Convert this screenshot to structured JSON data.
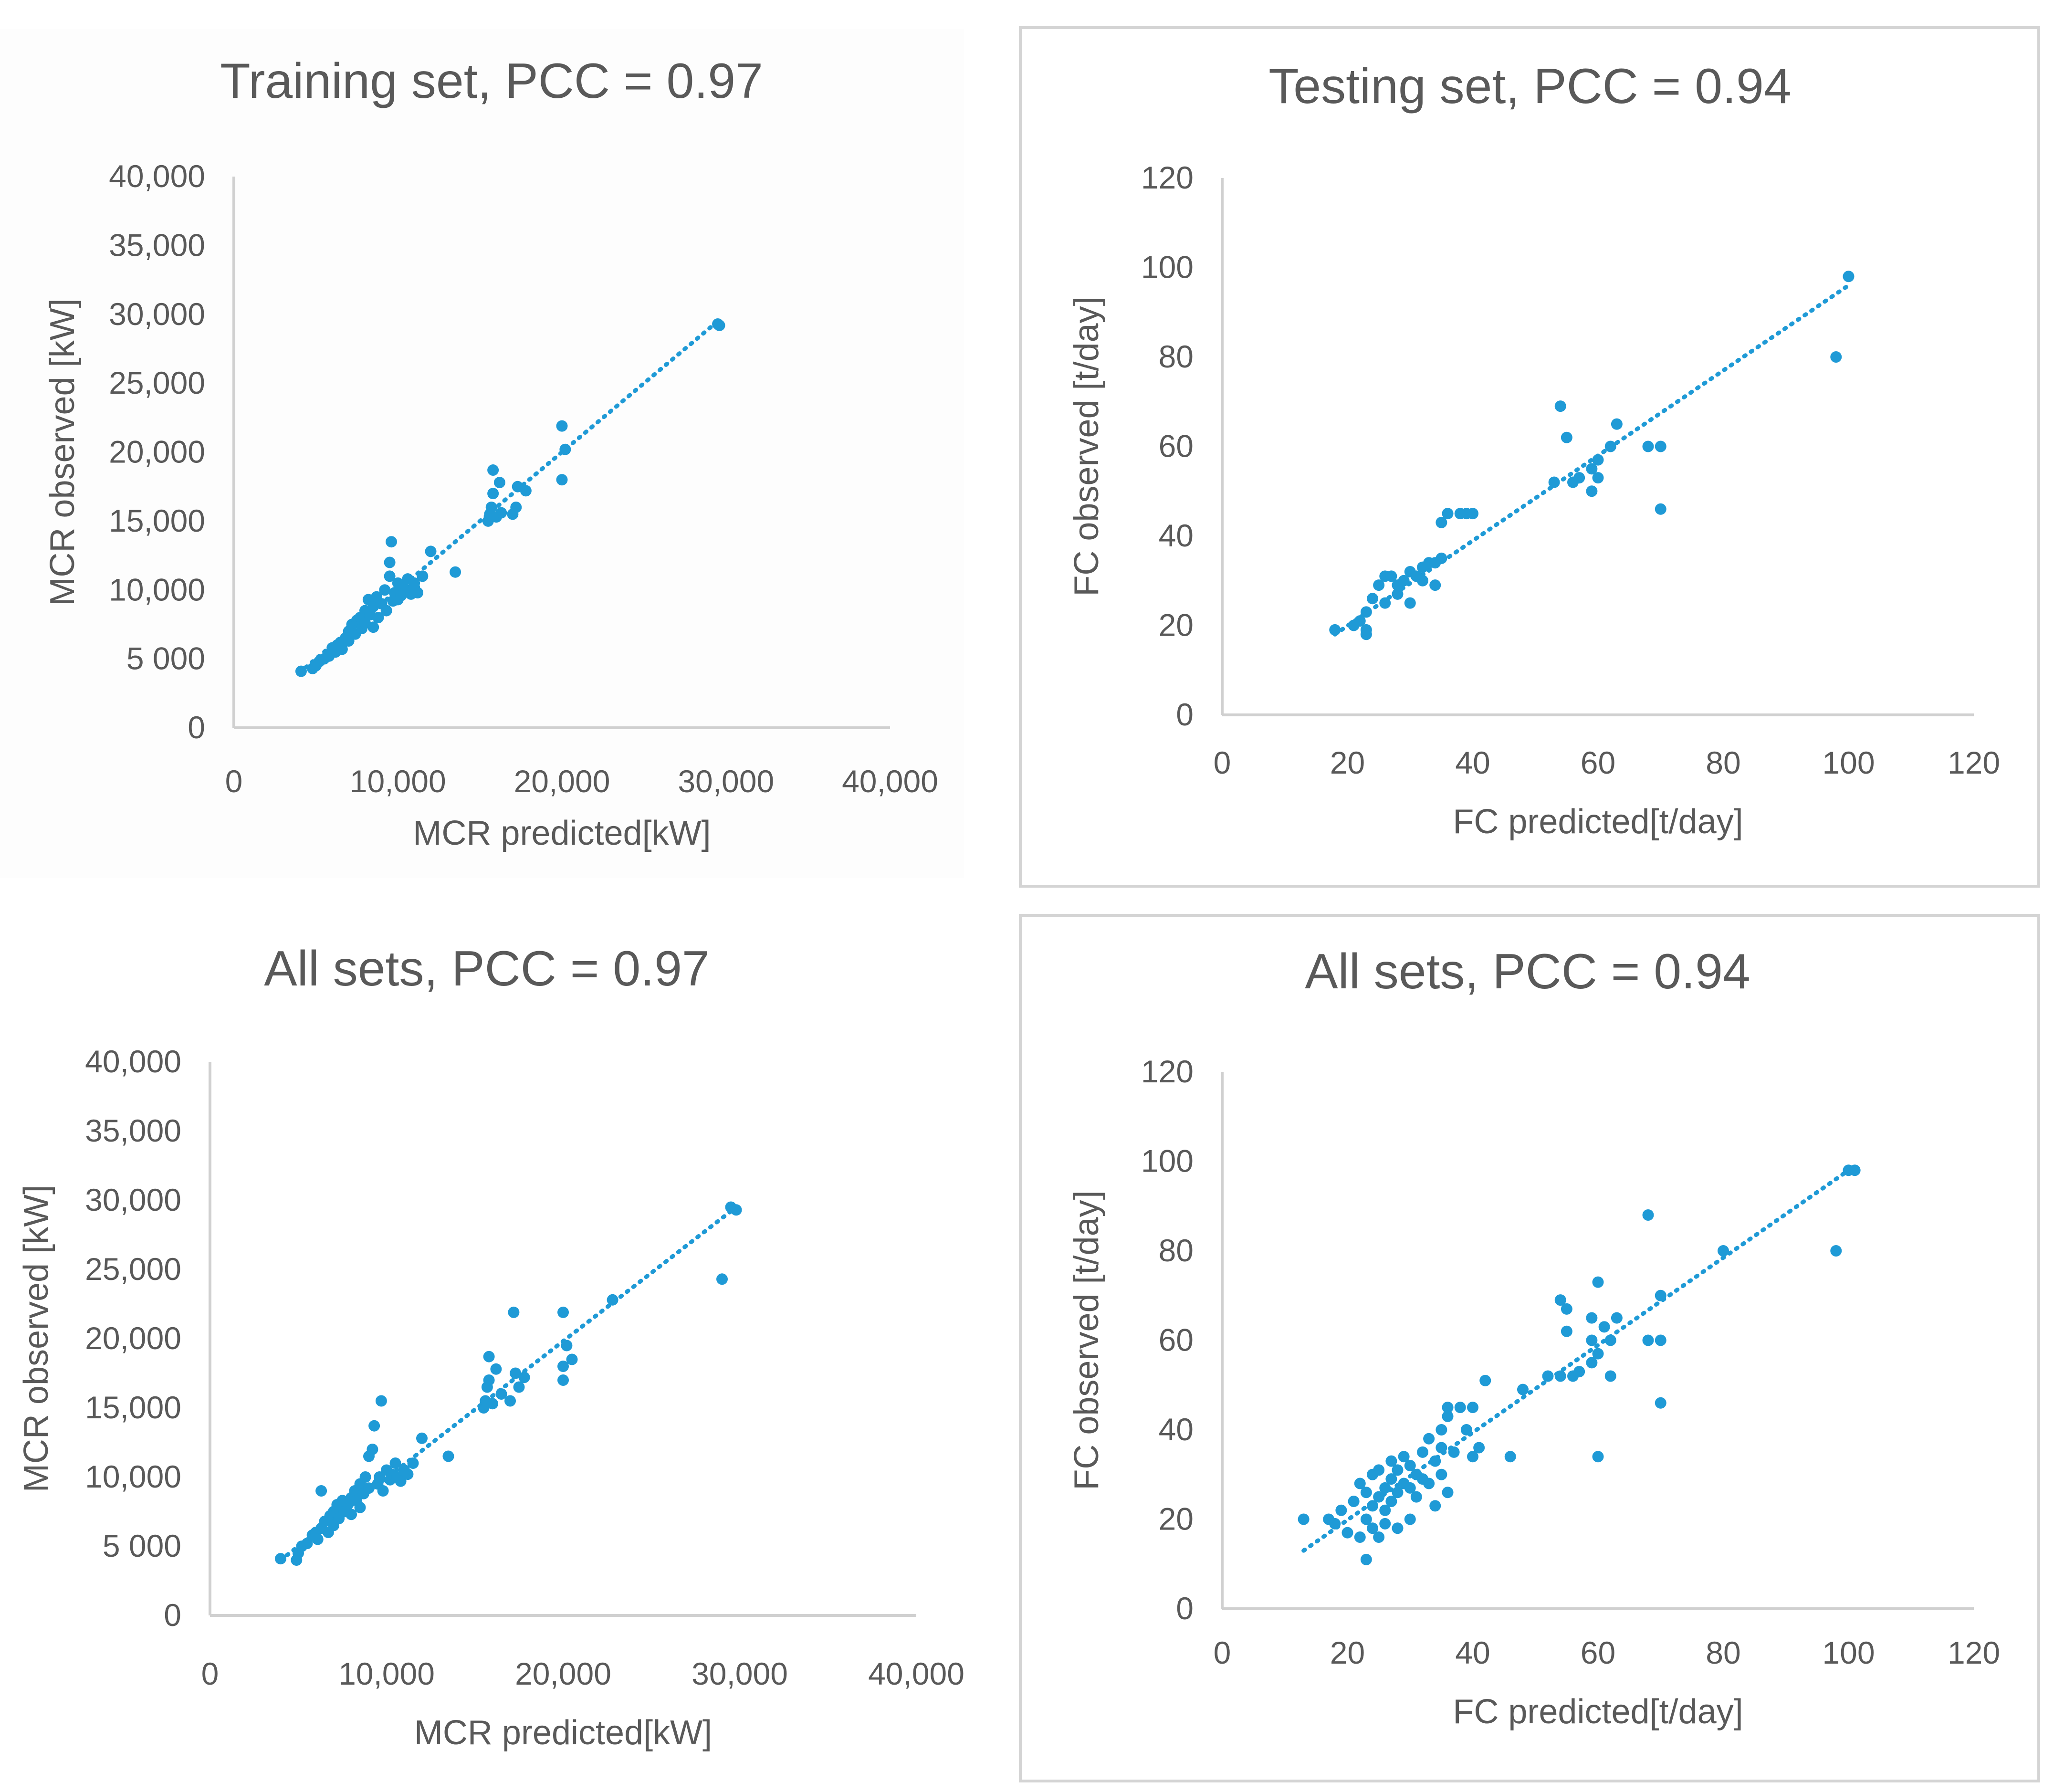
{
  "chart_data": [
    {
      "type": "scatter",
      "title": "Training set, PCC = 0.97",
      "xlabel": "MCR predicted[kW]",
      "ylabel": "MCR observed [kW]",
      "xlim": [
        0,
        40000
      ],
      "ylim": [
        0,
        40000
      ],
      "x_ticks": [
        0,
        10000,
        20000,
        30000,
        40000
      ],
      "x_tick_labels": [
        "0",
        "10,000",
        "20,000",
        "30,000",
        "40,000"
      ],
      "y_ticks": [
        0,
        5000,
        10000,
        15000,
        20000,
        25000,
        30000,
        35000,
        40000
      ],
      "y_tick_labels": [
        "0",
        "5 000",
        "10,000",
        "15,000",
        "20,000",
        "25,000",
        "30,000",
        "35,000",
        "40,000"
      ],
      "trendline": [
        [
          4000,
          4000
        ],
        [
          29500,
          29500
        ]
      ],
      "points": [
        [
          4100,
          4100
        ],
        [
          4800,
          4300
        ],
        [
          5000,
          4500
        ],
        [
          5200,
          4800
        ],
        [
          5500,
          5000
        ],
        [
          5800,
          5200
        ],
        [
          6000,
          5800
        ],
        [
          6200,
          5500
        ],
        [
          6300,
          6000
        ],
        [
          6500,
          6200
        ],
        [
          6600,
          5700
        ],
        [
          6800,
          6500
        ],
        [
          7000,
          7000
        ],
        [
          7000,
          6300
        ],
        [
          7200,
          7500
        ],
        [
          7400,
          6800
        ],
        [
          7500,
          7800
        ],
        [
          7700,
          8000
        ],
        [
          7800,
          7200
        ],
        [
          8000,
          8500
        ],
        [
          8000,
          7600
        ],
        [
          8200,
          9300
        ],
        [
          8300,
          8200
        ],
        [
          8500,
          8800
        ],
        [
          8500,
          7300
        ],
        [
          8700,
          9500
        ],
        [
          8800,
          8000
        ],
        [
          9000,
          9000
        ],
        [
          9200,
          10000
        ],
        [
          9300,
          8500
        ],
        [
          9500,
          11000
        ],
        [
          9500,
          12000
        ],
        [
          9600,
          13500
        ],
        [
          9700,
          9200
        ],
        [
          9800,
          9800
        ],
        [
          10000,
          10500
        ],
        [
          10000,
          9300
        ],
        [
          10200,
          9600
        ],
        [
          10300,
          10300
        ],
        [
          10500,
          10000
        ],
        [
          10600,
          10800
        ],
        [
          10800,
          9700
        ],
        [
          11000,
          10500
        ],
        [
          11000,
          10200
        ],
        [
          11200,
          9800
        ],
        [
          11500,
          11000
        ],
        [
          12000,
          12800
        ],
        [
          13500,
          11300
        ],
        [
          15500,
          15000
        ],
        [
          15600,
          15500
        ],
        [
          15700,
          16000
        ],
        [
          15800,
          17000
        ],
        [
          15800,
          18700
        ],
        [
          16000,
          15300
        ],
        [
          16200,
          17800
        ],
        [
          16300,
          15600
        ],
        [
          17000,
          15500
        ],
        [
          17200,
          16000
        ],
        [
          17300,
          17500
        ],
        [
          17800,
          17200
        ],
        [
          20000,
          18000
        ],
        [
          20000,
          21900
        ],
        [
          20200,
          20200
        ],
        [
          29500,
          29300
        ],
        [
          29600,
          29200
        ]
      ],
      "color": "#1f9ad6"
    },
    {
      "type": "scatter",
      "title": "Testing set, PCC = 0.94",
      "xlabel": "FC predicted[t/day]",
      "ylabel": "FC observed [t/day]",
      "xlim": [
        0,
        120
      ],
      "ylim": [
        0,
        120
      ],
      "x_ticks": [
        0,
        20,
        40,
        60,
        80,
        100,
        120
      ],
      "x_tick_labels": [
        "0",
        "20",
        "40",
        "60",
        "80",
        "100",
        "120"
      ],
      "y_ticks": [
        0,
        20,
        40,
        60,
        80,
        100,
        120
      ],
      "y_tick_labels": [
        "0",
        "20",
        "40",
        "60",
        "80",
        "100",
        "120"
      ],
      "trendline": [
        [
          18,
          18
        ],
        [
          100,
          96
        ]
      ],
      "points": [
        [
          18,
          19
        ],
        [
          21,
          20
        ],
        [
          22,
          21
        ],
        [
          23,
          18
        ],
        [
          23,
          19
        ],
        [
          23,
          23
        ],
        [
          24,
          26
        ],
        [
          25,
          29
        ],
        [
          26,
          25
        ],
        [
          26,
          31
        ],
        [
          27,
          31
        ],
        [
          28,
          29
        ],
        [
          28,
          27
        ],
        [
          29,
          30
        ],
        [
          30,
          25
        ],
        [
          30,
          32
        ],
        [
          31,
          31
        ],
        [
          32,
          33
        ],
        [
          32,
          30
        ],
        [
          33,
          34
        ],
        [
          34,
          34
        ],
        [
          34,
          29
        ],
        [
          35,
          35
        ],
        [
          35,
          43
        ],
        [
          36,
          45
        ],
        [
          38,
          45
        ],
        [
          39,
          45
        ],
        [
          40,
          45
        ],
        [
          53,
          52
        ],
        [
          54,
          69
        ],
        [
          55,
          62
        ],
        [
          56,
          52
        ],
        [
          57,
          53
        ],
        [
          59,
          55
        ],
        [
          59,
          50
        ],
        [
          60,
          57
        ],
        [
          60,
          53
        ],
        [
          62,
          60
        ],
        [
          63,
          65
        ],
        [
          68,
          60
        ],
        [
          70,
          60
        ],
        [
          70,
          46
        ],
        [
          98,
          80
        ],
        [
          100,
          98
        ]
      ],
      "color": "#1f9ad6"
    },
    {
      "type": "scatter",
      "title": "All sets, PCC = 0.97",
      "xlabel": "MCR predicted[kW]",
      "ylabel": "MCR observed [kW]",
      "xlim": [
        0,
        40000
      ],
      "ylim": [
        0,
        40000
      ],
      "x_ticks": [
        0,
        10000,
        20000,
        30000,
        40000
      ],
      "x_tick_labels": [
        "0",
        "10,000",
        "20,000",
        "30,000",
        "40,000"
      ],
      "y_ticks": [
        0,
        5000,
        10000,
        15000,
        20000,
        25000,
        30000,
        35000,
        40000
      ],
      "y_tick_labels": [
        "0",
        "5 000",
        "10,000",
        "15,000",
        "20,000",
        "25,000",
        "30,000",
        "35,000",
        "40,000"
      ],
      "trendline": [
        [
          4000,
          4000
        ],
        [
          29800,
          29500
        ]
      ],
      "points": [
        [
          4000,
          4100
        ],
        [
          4900,
          4000
        ],
        [
          5000,
          4500
        ],
        [
          5200,
          5000
        ],
        [
          5500,
          5200
        ],
        [
          5800,
          5800
        ],
        [
          6000,
          6000
        ],
        [
          6100,
          5500
        ],
        [
          6300,
          6300
        ],
        [
          6300,
          9000
        ],
        [
          6500,
          6800
        ],
        [
          6700,
          6000
        ],
        [
          6800,
          7200
        ],
        [
          7000,
          7500
        ],
        [
          7000,
          6500
        ],
        [
          7200,
          8000
        ],
        [
          7300,
          7000
        ],
        [
          7500,
          8300
        ],
        [
          7600,
          7500
        ],
        [
          7800,
          8000
        ],
        [
          8000,
          8500
        ],
        [
          8000,
          7300
        ],
        [
          8200,
          9000
        ],
        [
          8300,
          8300
        ],
        [
          8500,
          9500
        ],
        [
          8500,
          7800
        ],
        [
          8700,
          8800
        ],
        [
          8800,
          10000
        ],
        [
          9000,
          9200
        ],
        [
          9000,
          11500
        ],
        [
          9200,
          12000
        ],
        [
          9300,
          13700
        ],
        [
          9500,
          9500
        ],
        [
          9600,
          10000
        ],
        [
          9700,
          15500
        ],
        [
          9800,
          9000
        ],
        [
          10000,
          10500
        ],
        [
          10200,
          9800
        ],
        [
          10300,
          10200
        ],
        [
          10500,
          11000
        ],
        [
          10600,
          10000
        ],
        [
          10800,
          9700
        ],
        [
          11000,
          10500
        ],
        [
          11200,
          10200
        ],
        [
          11500,
          11000
        ],
        [
          12000,
          12800
        ],
        [
          13500,
          11500
        ],
        [
          15500,
          15000
        ],
        [
          15600,
          15500
        ],
        [
          15700,
          16500
        ],
        [
          15800,
          17000
        ],
        [
          15800,
          18700
        ],
        [
          16000,
          15300
        ],
        [
          16200,
          17800
        ],
        [
          16500,
          16000
        ],
        [
          17000,
          15500
        ],
        [
          17200,
          21900
        ],
        [
          17300,
          17500
        ],
        [
          17500,
          16500
        ],
        [
          17800,
          17200
        ],
        [
          20000,
          17000
        ],
        [
          20000,
          18000
        ],
        [
          20000,
          21900
        ],
        [
          20200,
          19500
        ],
        [
          20500,
          18500
        ],
        [
          22800,
          22800
        ],
        [
          29000,
          24300
        ],
        [
          29500,
          29500
        ],
        [
          29800,
          29300
        ]
      ],
      "color": "#1f9ad6"
    },
    {
      "type": "scatter",
      "title": "All sets, PCC = 0.94",
      "xlabel": "FC predicted[t/day]",
      "ylabel": "FC observed [t/day]",
      "xlim": [
        0,
        120
      ],
      "ylim": [
        0,
        120
      ],
      "x_ticks": [
        0,
        20,
        40,
        60,
        80,
        100,
        120
      ],
      "x_tick_labels": [
        "0",
        "20",
        "40",
        "60",
        "80",
        "100",
        "120"
      ],
      "y_ticks": [
        0,
        20,
        40,
        60,
        80,
        100,
        120
      ],
      "y_tick_labels": [
        "0",
        "20",
        "40",
        "60",
        "80",
        "100",
        "120"
      ],
      "trendline": [
        [
          13,
          13
        ],
        [
          100,
          98
        ]
      ],
      "points": [
        [
          13,
          20
        ],
        [
          17,
          20
        ],
        [
          18,
          19
        ],
        [
          19,
          22
        ],
        [
          20,
          17
        ],
        [
          21,
          24
        ],
        [
          22,
          16
        ],
        [
          22,
          28
        ],
        [
          23,
          11
        ],
        [
          23,
          20
        ],
        [
          23,
          26
        ],
        [
          24,
          18
        ],
        [
          24,
          23
        ],
        [
          24,
          30
        ],
        [
          25,
          16
        ],
        [
          25,
          25
        ],
        [
          25,
          31
        ],
        [
          26,
          19
        ],
        [
          26,
          27
        ],
        [
          26,
          22
        ],
        [
          27,
          24
        ],
        [
          27,
          29
        ],
        [
          27,
          33
        ],
        [
          28,
          18
        ],
        [
          28,
          26
        ],
        [
          28,
          31
        ],
        [
          29,
          28
        ],
        [
          29,
          34
        ],
        [
          30,
          20
        ],
        [
          30,
          27
        ],
        [
          30,
          32
        ],
        [
          31,
          25
        ],
        [
          31,
          30
        ],
        [
          32,
          29
        ],
        [
          32,
          35
        ],
        [
          33,
          28
        ],
        [
          33,
          38
        ],
        [
          34,
          23
        ],
        [
          34,
          33
        ],
        [
          35,
          36
        ],
        [
          35,
          40
        ],
        [
          35,
          30
        ],
        [
          36,
          26
        ],
        [
          36,
          43
        ],
        [
          36,
          45
        ],
        [
          37,
          35
        ],
        [
          38,
          45
        ],
        [
          39,
          40
        ],
        [
          40,
          45
        ],
        [
          40,
          34
        ],
        [
          41,
          36
        ],
        [
          42,
          51
        ],
        [
          46,
          34
        ],
        [
          48,
          49
        ],
        [
          52,
          52
        ],
        [
          54,
          52
        ],
        [
          54,
          69
        ],
        [
          55,
          62
        ],
        [
          55,
          67
        ],
        [
          56,
          52
        ],
        [
          57,
          53
        ],
        [
          59,
          55
        ],
        [
          59,
          60
        ],
        [
          59,
          65
        ],
        [
          60,
          57
        ],
        [
          60,
          73
        ],
        [
          60,
          34
        ],
        [
          61,
          63
        ],
        [
          62,
          52
        ],
        [
          62,
          60
        ],
        [
          63,
          65
        ],
        [
          68,
          60
        ],
        [
          68,
          88
        ],
        [
          70,
          60
        ],
        [
          70,
          46
        ],
        [
          70,
          70
        ],
        [
          80,
          80
        ],
        [
          98,
          80
        ],
        [
          100,
          98
        ],
        [
          101,
          98
        ]
      ],
      "color": "#1f9ad6"
    }
  ]
}
